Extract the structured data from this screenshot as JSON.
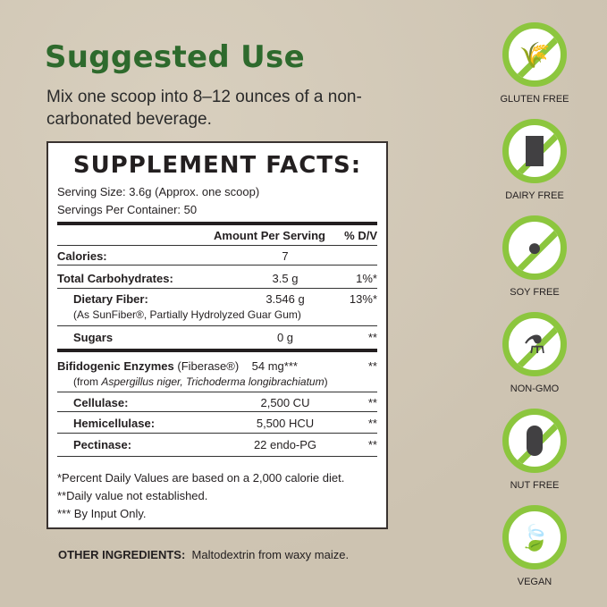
{
  "title": "Suggested Use",
  "intro": "Mix one scoop into 8–12 ounces of a non-carbonated beverage.",
  "facts": {
    "heading": "SUPPLEMENT FACTS:",
    "serving_size": "Serving Size: 3.6g (Approx. one scoop)",
    "servings": "Servings Per Container: 50",
    "col_amount": "Amount Per Serving",
    "col_dv": "% D/V",
    "rows": [
      {
        "name": "Calories:",
        "amount": "7",
        "dv": ""
      },
      {
        "name": "Total Carbohydrates:",
        "amount": "3.5 g",
        "dv": "1%*"
      },
      {
        "name": "Dietary Fiber:",
        "sub": "(As SunFiber®, Partially Hydrolyzed Guar Gum)",
        "amount": "3.546 g",
        "dv": "13%*"
      },
      {
        "name": "Sugars",
        "amount": "0 g",
        "dv": "**"
      },
      {
        "name": "Bifidogenic Enzymes",
        "name_extra": "(Fiberase®)",
        "sub_pre": "(from ",
        "sub_italic": "Aspergillus niger, Trichoderma longibrachiatum",
        "sub_post": ")",
        "amount": "54 mg***",
        "dv": "**"
      },
      {
        "name": "Cellulase:",
        "amount": "2,500 CU",
        "dv": "**"
      },
      {
        "name": "Hemicellulase:",
        "amount": "5,500 HCU",
        "dv": "**"
      },
      {
        "name": "Pectinase:",
        "amount": "22 endo-PG",
        "dv": "**"
      }
    ],
    "footnotes": [
      "*Percent Daily Values are based on a 2,000 calorie diet.",
      "**Daily value not established.",
      "*** By Input Only."
    ]
  },
  "other": {
    "label": "OTHER INGREDIENTS:",
    "value": "Maltodextrin from waxy maize."
  },
  "badges": [
    {
      "label": "GLUTEN FREE",
      "icon": "wheat-icon"
    },
    {
      "label": "DAIRY FREE",
      "icon": "milk-carton-icon"
    },
    {
      "label": "SOY FREE",
      "icon": "soybean-icon"
    },
    {
      "label": "NON-GMO",
      "icon": "flask-icon"
    },
    {
      "label": "NUT FREE",
      "icon": "peanut-icon"
    },
    {
      "label": "VEGAN",
      "icon": "leaf-icon"
    }
  ],
  "colors": {
    "title": "#2e6a2d",
    "badge_ring": "#8cc63e",
    "background": "#d3cab9"
  }
}
